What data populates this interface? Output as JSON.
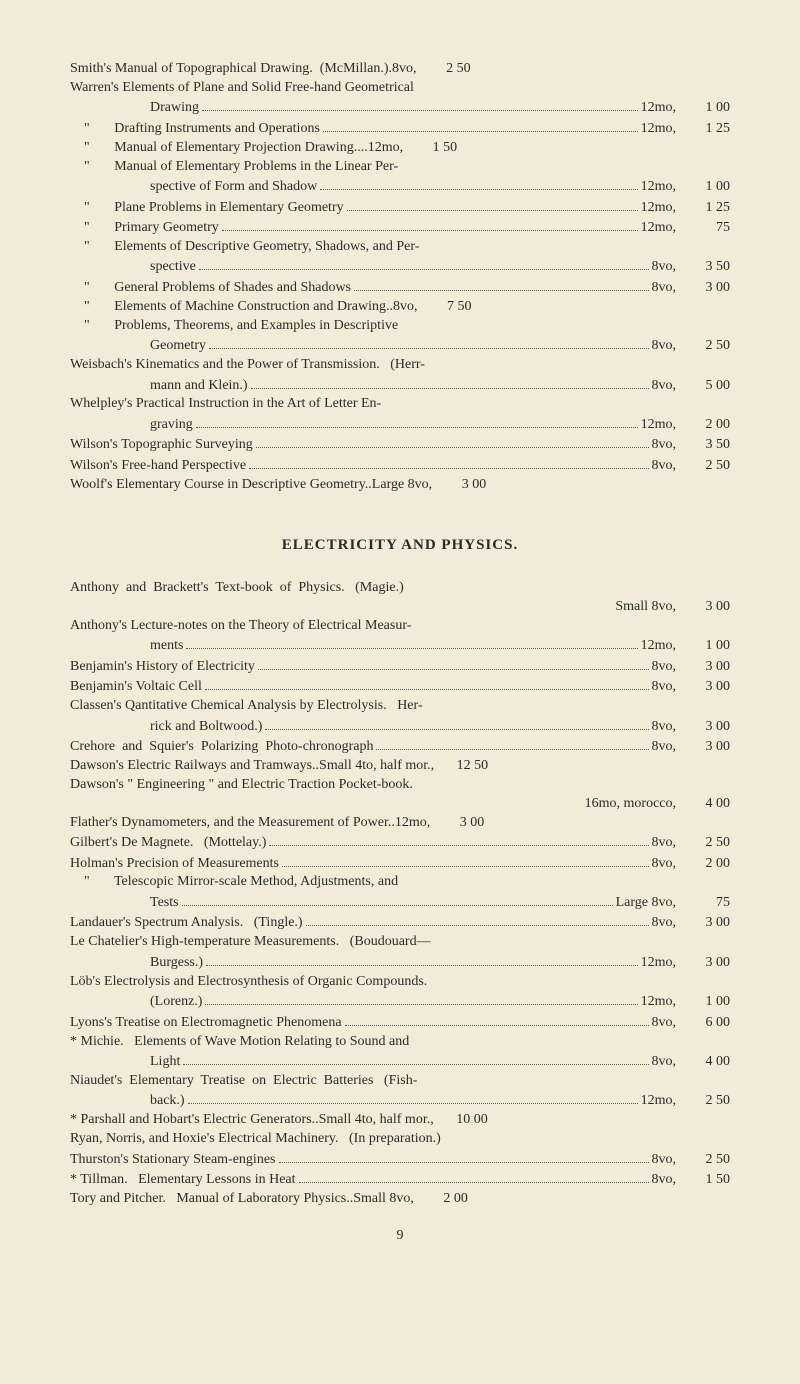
{
  "section1": [
    {
      "t": "Smith's Manual of Topographical Drawing.  (McMillan.).8vo,",
      "p": "2 50",
      "noleader": true
    },
    {
      "t": "Warren's Elements of Plane and Solid Free-hand Geometrical",
      "cont": true
    },
    {
      "t": "Drawing",
      "f": "12mo,",
      "p": "1 00",
      "indent": 1
    },
    {
      "t": "    \"       Drafting Instruments and Operations",
      "f": "12mo,",
      "p": "1 25"
    },
    {
      "t": "    \"       Manual of Elementary Projection Drawing",
      "f": "....12mo,",
      "p": "1 50",
      "noleader": true
    },
    {
      "t": "    \"       Manual of Elementary Problems in the Linear Per-",
      "cont": true
    },
    {
      "t": "spective of Form and Shadow",
      "f": "12mo,",
      "p": "1 00",
      "indent": 1
    },
    {
      "t": "    \"       Plane Problems in Elementary Geometry",
      "f": "12mo,",
      "p": "1 25"
    },
    {
      "t": "    \"       Primary Geometry",
      "f": "12mo,",
      "p": "75"
    },
    {
      "t": "    \"       Elements of Descriptive Geometry, Shadows, and Per-",
      "cont": true
    },
    {
      "t": "spective",
      "f": "8vo,",
      "p": "3 50",
      "indent": 1
    },
    {
      "t": "    \"       General Problems of Shades and Shadows",
      "f": "8vo,",
      "p": "3 00"
    },
    {
      "t": "    \"       Elements of Machine Construction and Drawing..8vo,",
      "p": "7 50",
      "noleader": true
    },
    {
      "t": "    \"       Problems, Theorems, and Examples in Descriptive",
      "cont": true
    },
    {
      "t": "Geometry",
      "f": "8vo,",
      "p": "2 50",
      "indent": 1
    },
    {
      "t": "Weisbach's Kinematics and the Power of Transmission.   (Herr-",
      "cont": true
    },
    {
      "t": "mann and Klein.)",
      "f": "8vo,",
      "p": "5 00",
      "indent": 1
    },
    {
      "t": "Whelpley's Practical Instruction in the Art of Letter En-",
      "cont": true
    },
    {
      "t": "graving",
      "f": "12mo,",
      "p": "2 00",
      "indent": 1
    },
    {
      "t": "Wilson's Topographic Surveying",
      "f": "8vo,",
      "p": "3 50"
    },
    {
      "t": "Wilson's Free-hand Perspective",
      "f": "8vo,",
      "p": "2 50"
    },
    {
      "t": "Woolf's Elementary Course in Descriptive Geometry.",
      "f": ".Large 8vo,",
      "p": "3 00",
      "noleader": true
    }
  ],
  "heading": "ELECTRICITY AND PHYSICS.",
  "section2": [
    {
      "t": "Anthony  and  Brackett's  Text-book  of  Physics.   (Magie.)",
      "cont": true
    },
    {
      "t": "Small 8vo,",
      "p": "3 00",
      "right": true
    },
    {
      "t": "Anthony's Lecture-notes on the Theory of Electrical Measur-",
      "cont": true
    },
    {
      "t": "ments",
      "f": "12mo,",
      "p": "1 00",
      "indent": 1
    },
    {
      "t": "Benjamin's History of Electricity",
      "f": "8vo,",
      "p": "3 00"
    },
    {
      "t": "Benjamin's Voltaic Cell",
      "f": "8vo,",
      "p": "3 00"
    },
    {
      "t": "Classen's Qantitative Chemical Analysis by Electrolysis.   Her-",
      "cont": true
    },
    {
      "t": "rick and Boltwood.)",
      "f": "8vo,",
      "p": "3 00",
      "indent": 1
    },
    {
      "t": "Crehore  and  Squier's  Polarizing  Photo-chronograph",
      "f": "8vo,",
      "p": "3 00"
    },
    {
      "t": "Dawson's Electric Railways and Tramways..Small 4to, half mor.,",
      "p": "12 50",
      "noleader": true
    },
    {
      "t": "Dawson's \" Engineering \" and Electric Traction Pocket-book.",
      "cont": true
    },
    {
      "t": "16mo, morocco,",
      "p": "4 00",
      "right": true
    },
    {
      "t": "Flather's Dynamometers, and the Measurement of Power.",
      "f": ".12mo,",
      "p": "3 00",
      "noleader": true
    },
    {
      "t": "Gilbert's De Magnete.   (Mottelay.)",
      "f": "8vo,",
      "p": "2 50"
    },
    {
      "t": "Holman's Precision of Measurements",
      "f": "8vo,",
      "p": "2 00"
    },
    {
      "t": "    \"       Telescopic Mirror-scale Method, Adjustments, and",
      "cont": true
    },
    {
      "t": "Tests",
      "f": "Large 8vo,",
      "p": "75",
      "indent": 1
    },
    {
      "t": "Landauer's Spectrum Analysis.   (Tingle.)",
      "f": "8vo,",
      "p": "3 00"
    },
    {
      "t": "Le Chatelier's High-temperature Measurements.   (Boudouard—",
      "cont": true
    },
    {
      "t": "Burgess.)",
      "f": "12mo,",
      "p": "3 00",
      "indent": 1
    },
    {
      "t": "Löb's Electrolysis and Electrosynthesis of Organic Compounds.",
      "cont": true
    },
    {
      "t": "(Lorenz.)",
      "f": "12mo,",
      "p": "1 00",
      "indent": 1
    },
    {
      "t": "Lyons's Treatise on Electromagnetic Phenomena",
      "f": "8vo,",
      "p": "6 00"
    },
    {
      "t": "* Michie.   Elements of Wave Motion Relating to Sound and",
      "cont": true
    },
    {
      "t": "Light",
      "f": "8vo,",
      "p": "4 00",
      "indent": 1
    },
    {
      "t": "Niaudet's  Elementary  Treatise  on  Electric  Batteries   (Fish-",
      "cont": true
    },
    {
      "t": "back.)",
      "f": "12mo,",
      "p": "2 50",
      "indent": 1
    },
    {
      "t": "* Parshall and Hobart's Electric Generators..Small 4to, half mor.,",
      "p": "10 00",
      "noleader": true
    },
    {
      "t": "Ryan, Norris, and Hoxie's Electrical Machinery.   (In preparation.)",
      "plain": true
    },
    {
      "t": "Thurston's Stationary Steam-engines",
      "f": "8vo,",
      "p": "2 50"
    },
    {
      "t": "* Tillman.   Elementary Lessons in Heat",
      "f": "8vo,",
      "p": "1 50"
    },
    {
      "t": "Tory and Pitcher.   Manual of Laboratory Physics.",
      "f": ".Small 8vo,",
      "p": "2 00",
      "noleader": true
    }
  ],
  "pageNum": "9"
}
